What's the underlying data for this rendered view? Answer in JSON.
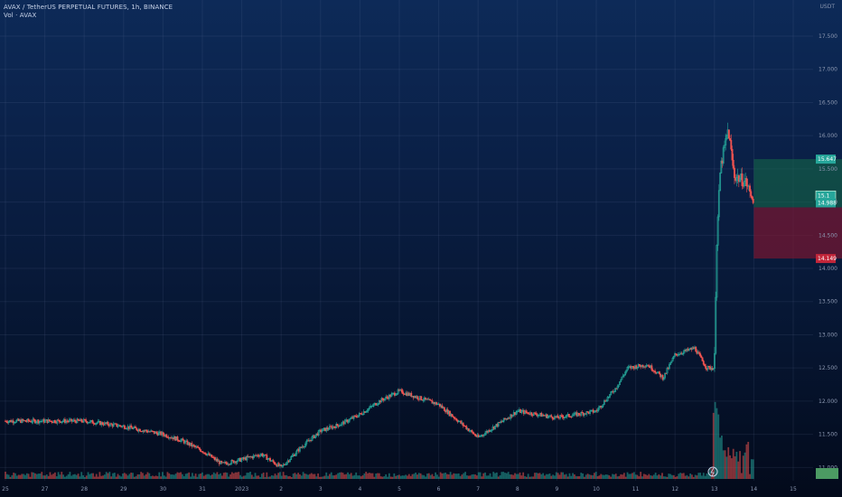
{
  "header": {
    "title": "AVAX / TetherUS PERPETUAL FUTURES, 1h, BINANCE",
    "indicator": "Vol · AVAX"
  },
  "currency": "USDT",
  "colors": {
    "up": "#26a69a",
    "down": "#ef5350",
    "target_zone": "rgba(22,110,72,0.55)",
    "stop_zone": "rgba(130,22,48,0.65)",
    "price_badge": "#26a69a",
    "stop_badge": "#c2263a",
    "grid": "rgba(120,140,180,0.12)",
    "axis_text": "#8b97b0"
  },
  "price_badges": {
    "target": "15.647",
    "current_top": "15.1",
    "current": "14.988",
    "stop": "14.149"
  },
  "chart_data": {
    "type": "candlestick",
    "title": "AVAX / TetherUS PERPETUAL FUTURES, 1h, BINANCE",
    "ylim": [
      10.8,
      17.8
    ],
    "y_ticks": [
      "11.000",
      "11.500",
      "12.000",
      "12.500",
      "13.000",
      "13.500",
      "14.000",
      "14.500",
      "15.000",
      "15.500",
      "16.000",
      "16.500",
      "17.000",
      "17.500"
    ],
    "x_ticks": [
      "25",
      "27",
      "28",
      "29",
      "30",
      "31",
      "2023",
      "2",
      "3",
      "4",
      "5",
      "6",
      "7",
      "8",
      "9",
      "10",
      "11",
      "12",
      "13",
      "14",
      "15"
    ],
    "grid": true,
    "price_path": [
      [
        0,
        11.7
      ],
      [
        2,
        11.7
      ],
      [
        3,
        11.62
      ],
      [
        4,
        11.5
      ],
      [
        4.5,
        11.4
      ],
      [
        5,
        11.25
      ],
      [
        5.5,
        11.05
      ],
      [
        6,
        11.12
      ],
      [
        6.5,
        11.2
      ],
      [
        7,
        11.0
      ],
      [
        7.5,
        11.3
      ],
      [
        8,
        11.55
      ],
      [
        8.5,
        11.65
      ],
      [
        9,
        11.8
      ],
      [
        9.5,
        12.0
      ],
      [
        10,
        12.15
      ],
      [
        11,
        11.95
      ],
      [
        12,
        11.45
      ],
      [
        13,
        11.85
      ],
      [
        14,
        11.75
      ],
      [
        15,
        11.85
      ],
      [
        15.5,
        12.2
      ],
      [
        15.8,
        12.5
      ],
      [
        16.3,
        12.55
      ],
      [
        16.7,
        12.35
      ],
      [
        17,
        12.7
      ],
      [
        17.5,
        12.8
      ],
      [
        17.8,
        12.5
      ],
      [
        18.0,
        12.5
      ],
      [
        18.05,
        14.3
      ],
      [
        18.15,
        15.5
      ],
      [
        18.35,
        16.1
      ],
      [
        18.5,
        15.4
      ],
      [
        18.8,
        15.3
      ],
      [
        19.0,
        14.99
      ]
    ],
    "volume": [
      [
        17.9,
        0.12
      ],
      [
        18.05,
        1.0
      ],
      [
        18.2,
        0.55
      ],
      [
        18.4,
        0.4
      ],
      [
        18.6,
        0.35
      ],
      [
        18.8,
        0.45
      ],
      [
        19.0,
        0.25
      ]
    ],
    "position": {
      "entry": 14.92,
      "target": 15.647,
      "stop": 14.149,
      "x_start": 19.0,
      "x_end": 21.3
    }
  }
}
